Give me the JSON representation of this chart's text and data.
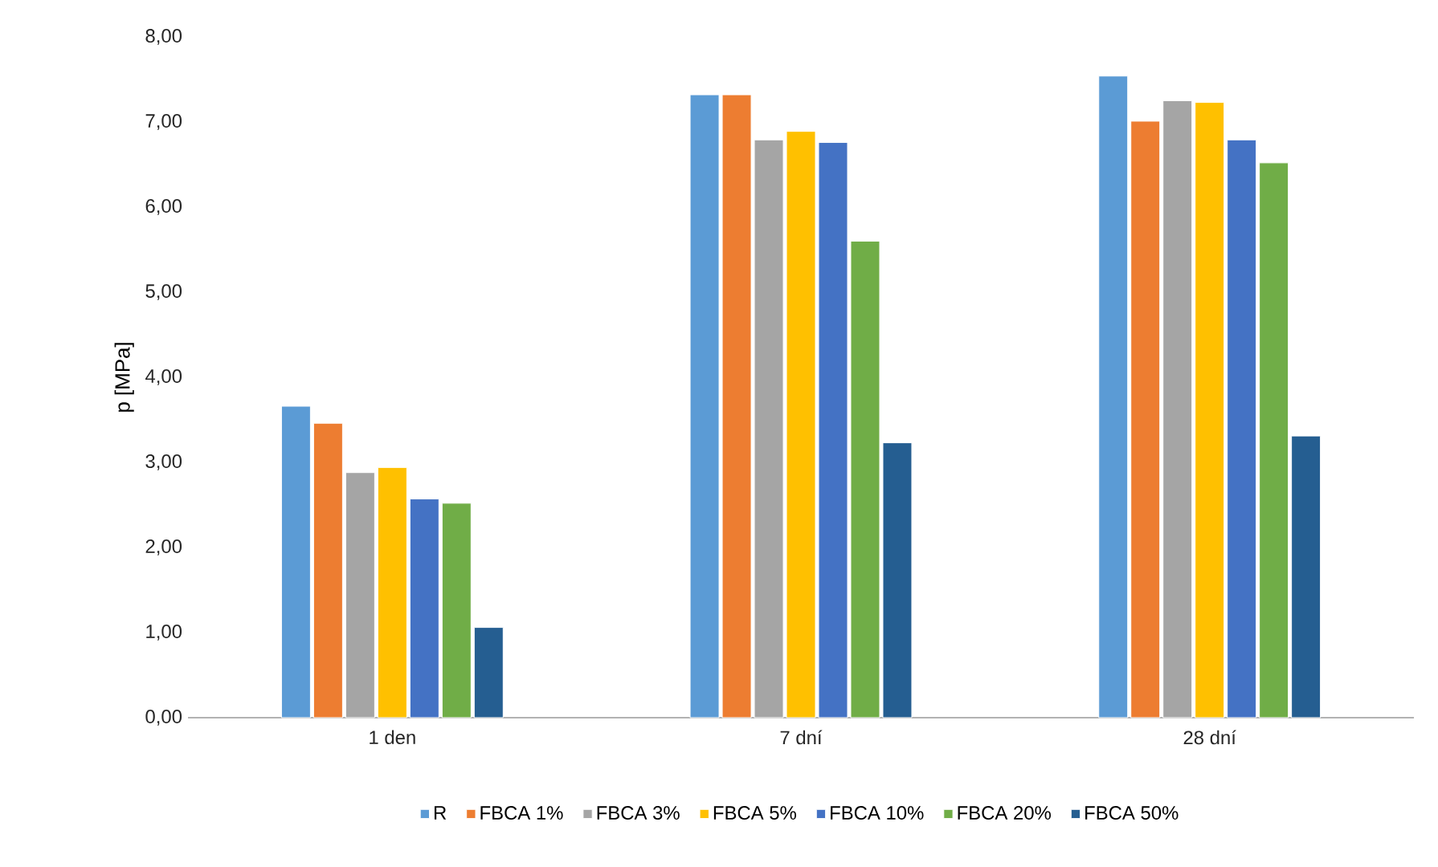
{
  "chart_data": {
    "type": "bar",
    "ylabel": "p [MPa]",
    "categories": [
      "1 den",
      "7 dní",
      "28 dní"
    ],
    "series": [
      {
        "name": "R",
        "color": "#5b9bd5",
        "values": [
          3.66,
          7.32,
          7.54
        ]
      },
      {
        "name": "FBCA 1%",
        "color": "#ed7d31",
        "values": [
          3.46,
          7.32,
          7.01
        ]
      },
      {
        "name": "FBCA 3%",
        "color": "#a5a5a5",
        "values": [
          2.88,
          6.79,
          7.25
        ]
      },
      {
        "name": "FBCA 5%",
        "color": "#ffc000",
        "values": [
          2.94,
          6.89,
          7.23
        ]
      },
      {
        "name": "FBCA 10%",
        "color": "#4472c4",
        "values": [
          2.57,
          6.76,
          6.79
        ]
      },
      {
        "name": "FBCA 20%",
        "color": "#70ad47",
        "values": [
          2.52,
          5.6,
          6.52
        ]
      },
      {
        "name": "FBCA 50%",
        "color": "#255e91",
        "values": [
          1.06,
          3.23,
          3.31
        ]
      }
    ],
    "ylim": [
      0,
      8
    ],
    "yticks": [
      {
        "value": 0,
        "label": "0,00"
      },
      {
        "value": 1,
        "label": "1,00"
      },
      {
        "value": 2,
        "label": "2,00"
      },
      {
        "value": 3,
        "label": "3,00"
      },
      {
        "value": 4,
        "label": "4,00"
      },
      {
        "value": 5,
        "label": "5,00"
      },
      {
        "value": 6,
        "label": "6,00"
      },
      {
        "value": 7,
        "label": "7,00"
      },
      {
        "value": 8,
        "label": "8,00"
      }
    ],
    "legend": "bottom"
  }
}
